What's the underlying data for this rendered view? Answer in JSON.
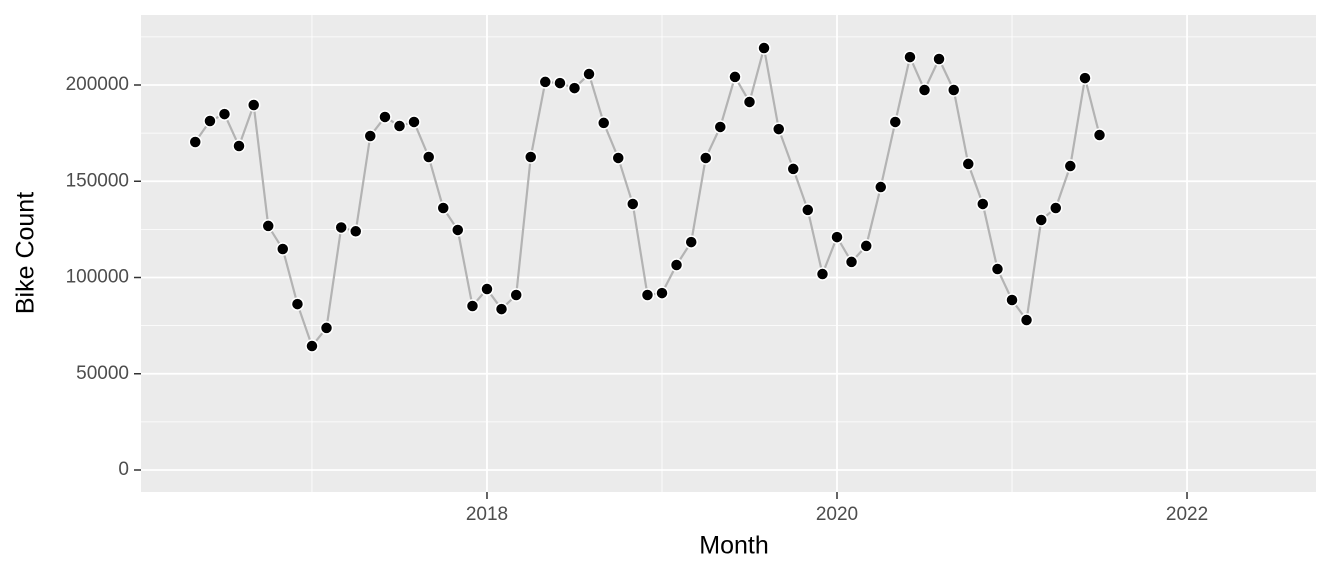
{
  "chart_data": {
    "type": "line",
    "x_label": "Month",
    "y_label": "Bike Count",
    "x": [
      2016.333,
      2016.417,
      2016.5,
      2016.583,
      2016.667,
      2016.75,
      2016.833,
      2016.917,
      2017.0,
      2017.083,
      2017.167,
      2017.25,
      2017.333,
      2017.417,
      2017.5,
      2017.583,
      2017.667,
      2017.75,
      2017.833,
      2017.917,
      2018.0,
      2018.083,
      2018.167,
      2018.25,
      2018.333,
      2018.417,
      2018.5,
      2018.583,
      2018.667,
      2018.75,
      2018.833,
      2018.917,
      2019.0,
      2019.083,
      2019.167,
      2019.25,
      2019.333,
      2019.417,
      2019.5,
      2019.583,
      2019.667,
      2019.75,
      2019.833,
      2019.917,
      2020.0,
      2020.083,
      2020.167,
      2020.25,
      2020.333,
      2020.417,
      2020.5,
      2020.583,
      2020.667,
      2020.75,
      2020.833,
      2020.917,
      2021.0,
      2021.083,
      2021.167,
      2021.25,
      2021.333,
      2021.417,
      2021.5
    ],
    "series": [
      {
        "color": "#b3b3b3",
        "marker_color": "#000000",
        "values": [
          170400,
          181300,
          184900,
          168300,
          189600,
          126800,
          114800,
          86200,
          64400,
          73800,
          126000,
          124000,
          173500,
          183400,
          178700,
          180800,
          162600,
          136100,
          124700,
          85200,
          94000,
          83600,
          90900,
          162600,
          201600,
          201000,
          198400,
          205700,
          180300,
          162100,
          138200,
          90900,
          91900,
          106500,
          118400,
          162100,
          178200,
          204200,
          191200,
          219200,
          177100,
          156400,
          135100,
          101800,
          121000,
          108100,
          116400,
          147000,
          180800,
          214500,
          197400,
          213500,
          197400,
          159000,
          138200,
          104400,
          88300,
          77900,
          129900,
          136100,
          157900,
          203600,
          174000
        ]
      }
    ],
    "xlim": [
      2016.023,
      2022.737
    ],
    "xticks": [
      2018,
      2020,
      2022
    ],
    "ylim": [
      -11429,
      236364
    ],
    "yticks": [
      0,
      50000,
      100000,
      150000,
      200000
    ],
    "grid": true
  }
}
